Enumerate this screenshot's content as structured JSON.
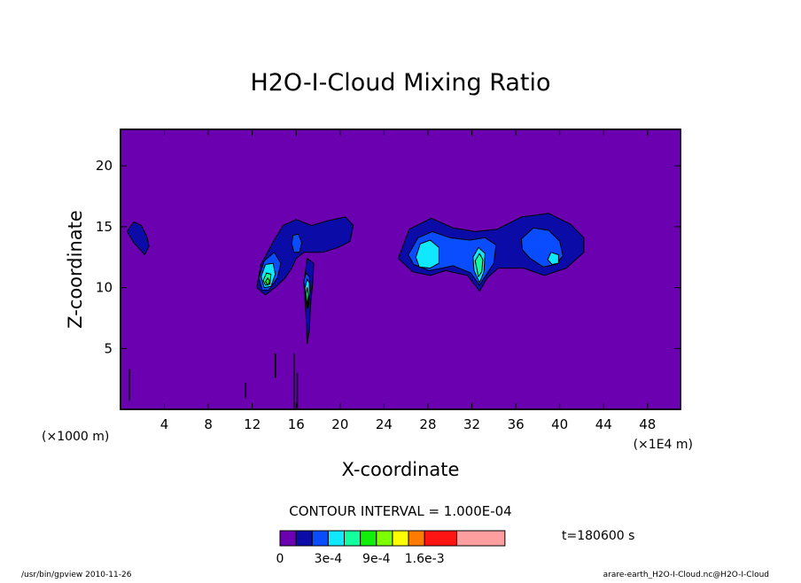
{
  "chart_data": {
    "type": "heatmap",
    "title": "H2O-I-Cloud Mixing Ratio",
    "xlabel": "X-coordinate",
    "ylabel": "Z-coordinate",
    "x_unit_left": "(×1000 m)",
    "x_unit_right": "(×1E4 m)",
    "xlim": [
      0,
      51
    ],
    "ylim": [
      0,
      23
    ],
    "x_ticks": [
      4,
      8,
      12,
      16,
      20,
      24,
      28,
      32,
      36,
      40,
      44,
      48
    ],
    "y_ticks": [
      5,
      10,
      15,
      20
    ],
    "background_color": "#6a00b0",
    "contour_interval_text": "CONTOUR INTERVAL = 1.000E-04",
    "time_text": "t=180600 s",
    "colorbar": {
      "labels": [
        {
          "text": "0",
          "value": 0
        },
        {
          "text": "3e-4",
          "value": 0.0003
        },
        {
          "text": "9e-4",
          "value": 0.0009
        },
        {
          "text": "1.6e-3",
          "value": 0.0016
        }
      ],
      "levels": [
        {
          "value": 0,
          "color": "#6a00b0"
        },
        {
          "value": 0.0001,
          "color": "#0b0ca8"
        },
        {
          "value": 0.0002,
          "color": "#0a4cff"
        },
        {
          "value": 0.0003,
          "color": "#0fe8ff"
        },
        {
          "value": 0.0004,
          "color": "#13ff9e"
        },
        {
          "value": 0.0006,
          "color": "#10ee0a"
        },
        {
          "value": 0.0009,
          "color": "#7cff00"
        },
        {
          "value": 0.0011,
          "color": "#ffff00"
        },
        {
          "value": 0.0013,
          "color": "#ff7a00"
        },
        {
          "value": 0.0016,
          "color": "#ff1414"
        },
        {
          "value": 0.002,
          "color": "#ff9e9e"
        }
      ]
    },
    "contour_regions": [
      {
        "level": 1,
        "points": [
          [
            0.6,
            14.6
          ],
          [
            1.2,
            15.4
          ],
          [
            1.9,
            15.1
          ],
          [
            2.4,
            14.2
          ],
          [
            2.6,
            13.4
          ],
          [
            2.2,
            12.7
          ],
          [
            1.7,
            13.2
          ],
          [
            1.2,
            13.7
          ]
        ]
      },
      {
        "level": 1,
        "points": [
          [
            12.4,
            10.0
          ],
          [
            12.8,
            11.9
          ],
          [
            13.8,
            13.6
          ],
          [
            14.8,
            15.1
          ],
          [
            16.0,
            15.6
          ],
          [
            17.4,
            15.1
          ],
          [
            18.9,
            15.5
          ],
          [
            20.5,
            15.8
          ],
          [
            21.2,
            15.1
          ],
          [
            20.9,
            13.8
          ],
          [
            19.8,
            13.3
          ],
          [
            18.4,
            12.9
          ],
          [
            16.7,
            12.9
          ],
          [
            16.0,
            12.4
          ],
          [
            15.6,
            11.6
          ],
          [
            15.0,
            10.8
          ],
          [
            14.2,
            10.1
          ],
          [
            13.2,
            9.4
          ]
        ]
      },
      {
        "level": 1,
        "points": [
          [
            16.7,
            10.4
          ],
          [
            17.0,
            12.4
          ],
          [
            17.6,
            12.0
          ],
          [
            17.5,
            10.4
          ],
          [
            17.3,
            8.5
          ],
          [
            17.2,
            6.5
          ],
          [
            17.0,
            5.4
          ],
          [
            16.9,
            7.6
          ]
        ]
      },
      {
        "level": 1,
        "points": [
          [
            25.3,
            12.4
          ],
          [
            26.3,
            14.8
          ],
          [
            28.3,
            15.7
          ],
          [
            30.3,
            14.9
          ],
          [
            32.3,
            14.6
          ],
          [
            34.3,
            14.8
          ],
          [
            36.5,
            15.8
          ],
          [
            39.0,
            16.1
          ],
          [
            41.0,
            15.2
          ],
          [
            42.2,
            14.1
          ],
          [
            42.2,
            12.9
          ],
          [
            40.6,
            11.6
          ],
          [
            38.6,
            11.0
          ],
          [
            36.7,
            11.6
          ],
          [
            34.4,
            11.6
          ],
          [
            33.4,
            10.8
          ],
          [
            32.7,
            9.7
          ],
          [
            31.6,
            11.0
          ],
          [
            29.6,
            11.4
          ],
          [
            28.2,
            11.0
          ],
          [
            26.6,
            11.3
          ]
        ]
      },
      {
        "level": 2,
        "points": [
          [
            12.6,
            10.8
          ],
          [
            13.1,
            12.2
          ],
          [
            14.0,
            12.9
          ],
          [
            14.6,
            12.0
          ],
          [
            14.3,
            10.8
          ],
          [
            13.5,
            9.8
          ],
          [
            12.9,
            9.8
          ]
        ]
      },
      {
        "level": 2,
        "points": [
          [
            15.6,
            13.6
          ],
          [
            15.7,
            14.3
          ],
          [
            16.2,
            14.4
          ],
          [
            16.5,
            13.7
          ],
          [
            16.3,
            12.9
          ],
          [
            15.8,
            12.9
          ]
        ]
      },
      {
        "level": 2,
        "points": [
          [
            16.7,
            10.5
          ],
          [
            16.9,
            11.2
          ],
          [
            17.2,
            10.9
          ],
          [
            17.3,
            9.8
          ],
          [
            17.1,
            8.4
          ],
          [
            16.9,
            9.2
          ]
        ]
      },
      {
        "level": 2,
        "points": [
          [
            26.2,
            12.7
          ],
          [
            27.1,
            14.1
          ],
          [
            28.4,
            14.6
          ],
          [
            30.0,
            14.1
          ],
          [
            31.8,
            13.9
          ],
          [
            33.2,
            14.1
          ],
          [
            34.2,
            13.5
          ],
          [
            34.0,
            12.0
          ],
          [
            33.2,
            10.9
          ],
          [
            32.7,
            10.2
          ],
          [
            31.9,
            11.2
          ],
          [
            30.3,
            11.8
          ],
          [
            29.3,
            11.6
          ],
          [
            28.1,
            11.4
          ],
          [
            26.7,
            11.9
          ]
        ]
      },
      {
        "level": 2,
        "points": [
          [
            36.5,
            14.0
          ],
          [
            37.6,
            14.9
          ],
          [
            39.0,
            14.7
          ],
          [
            40.0,
            13.8
          ],
          [
            40.3,
            12.6
          ],
          [
            39.6,
            11.9
          ],
          [
            38.5,
            11.7
          ],
          [
            37.3,
            12.4
          ],
          [
            36.6,
            13.1
          ]
        ]
      },
      {
        "level": 3,
        "points": [
          [
            12.8,
            10.9
          ],
          [
            13.2,
            11.9
          ],
          [
            13.9,
            12.0
          ],
          [
            14.1,
            11.1
          ],
          [
            13.7,
            10.1
          ],
          [
            13.1,
            10.0
          ]
        ]
      },
      {
        "level": 3,
        "points": [
          [
            16.8,
            10.0
          ],
          [
            17.0,
            10.7
          ],
          [
            17.2,
            10.4
          ],
          [
            17.2,
            9.4
          ],
          [
            17.0,
            8.3
          ],
          [
            16.9,
            8.8
          ]
        ]
      },
      {
        "level": 3,
        "points": [
          [
            26.9,
            12.5
          ],
          [
            27.3,
            13.6
          ],
          [
            28.2,
            13.9
          ],
          [
            29.0,
            13.3
          ],
          [
            29.0,
            12.0
          ],
          [
            28.2,
            11.6
          ],
          [
            27.2,
            11.7
          ]
        ]
      },
      {
        "level": 3,
        "points": [
          [
            32.1,
            12.5
          ],
          [
            32.6,
            13.3
          ],
          [
            33.2,
            12.8
          ],
          [
            33.1,
            11.3
          ],
          [
            32.7,
            10.4
          ],
          [
            32.2,
            11.4
          ]
        ]
      },
      {
        "level": 3,
        "points": [
          [
            38.9,
            12.3
          ],
          [
            39.2,
            12.9
          ],
          [
            39.9,
            12.7
          ],
          [
            39.9,
            12.0
          ],
          [
            39.3,
            11.9
          ]
        ]
      },
      {
        "level": 4,
        "points": [
          [
            13.0,
            10.6
          ],
          [
            13.3,
            11.2
          ],
          [
            13.7,
            11.1
          ],
          [
            13.6,
            10.3
          ],
          [
            13.2,
            10.2
          ]
        ]
      },
      {
        "level": 4,
        "points": [
          [
            16.9,
            9.5
          ],
          [
            17.0,
            10.0
          ],
          [
            17.1,
            9.3
          ],
          [
            17.0,
            8.5
          ]
        ]
      },
      {
        "level": 4,
        "points": [
          [
            32.3,
            12.2
          ],
          [
            32.7,
            12.8
          ],
          [
            33.0,
            12.3
          ],
          [
            32.9,
            11.3
          ],
          [
            32.6,
            10.9
          ]
        ]
      },
      {
        "level": 5,
        "points": [
          [
            13.2,
            10.5
          ],
          [
            13.4,
            10.8
          ],
          [
            13.6,
            10.5
          ],
          [
            13.4,
            10.2
          ]
        ]
      }
    ],
    "streaks": [
      {
        "x": 0.8,
        "y0": 0.7,
        "y1": 3.3
      },
      {
        "x": 11.4,
        "y0": 0.9,
        "y1": 2.2
      },
      {
        "x": 14.1,
        "y0": 2.6,
        "y1": 4.6
      },
      {
        "x": 15.8,
        "y0": 0.1,
        "y1": 4.6
      },
      {
        "x": 16.1,
        "y0": 0.1,
        "y1": 3.0
      }
    ]
  },
  "footer": {
    "left": "/usr/bin/gpview  2010-11-26",
    "right": "arare-earth_H2O-I-Cloud.nc@H2O-I-Cloud"
  }
}
